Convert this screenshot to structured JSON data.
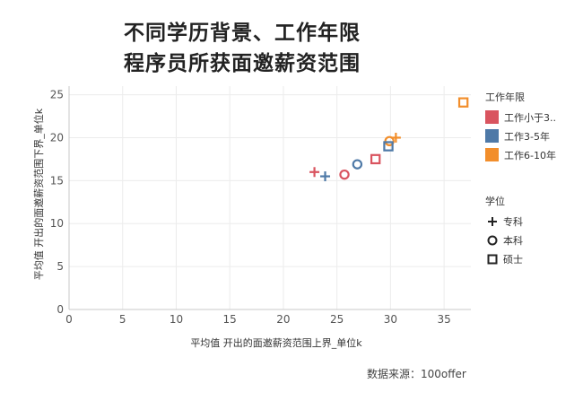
{
  "chart_data": {
    "type": "scatter",
    "title": [
      "不同学历背景、工作年限",
      "程序员所获面邀薪资范围"
    ],
    "xlabel": "平均值 开出的面邀薪资范围上界_单位k",
    "ylabel": "平均值 开出的面邀薪资范围下界_单位k",
    "xlim": [
      0,
      37.5
    ],
    "ylim": [
      0,
      26
    ],
    "xticks": [
      0,
      5,
      10,
      15,
      20,
      25,
      30,
      35
    ],
    "yticks": [
      0,
      5,
      10,
      15,
      20,
      25
    ],
    "grid": true,
    "legend_color": {
      "title": "工作年限",
      "items": [
        {
          "label": "工作小于3..",
          "color": "#d9545f"
        },
        {
          "label": "工作3-5年",
          "color": "#4e79a7"
        },
        {
          "label": "工作6-10年",
          "color": "#f28e2b"
        }
      ]
    },
    "legend_shape": {
      "title": "学位",
      "items": [
        {
          "label": "专科",
          "shape": "plus"
        },
        {
          "label": "本科",
          "shape": "circle"
        },
        {
          "label": "硕士",
          "shape": "square"
        }
      ]
    },
    "points": [
      {
        "x": 22.9,
        "y": 16.0,
        "group": 0,
        "degree": "plus"
      },
      {
        "x": 23.9,
        "y": 15.5,
        "group": 1,
        "degree": "plus"
      },
      {
        "x": 30.5,
        "y": 20.0,
        "group": 2,
        "degree": "plus"
      },
      {
        "x": 25.7,
        "y": 15.7,
        "group": 0,
        "degree": "circle"
      },
      {
        "x": 26.9,
        "y": 16.9,
        "group": 1,
        "degree": "circle"
      },
      {
        "x": 29.9,
        "y": 19.6,
        "group": 2,
        "degree": "circle"
      },
      {
        "x": 28.6,
        "y": 17.5,
        "group": 0,
        "degree": "square"
      },
      {
        "x": 29.8,
        "y": 19.0,
        "group": 1,
        "degree": "square"
      },
      {
        "x": 36.8,
        "y": 24.1,
        "group": 2,
        "degree": "square"
      }
    ]
  },
  "source": "数据来源：100offer"
}
